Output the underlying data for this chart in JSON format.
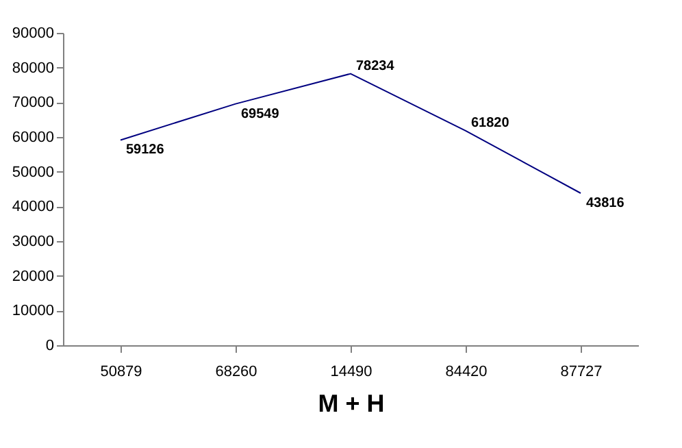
{
  "chart_data": {
    "type": "line",
    "xlabel": "M + H",
    "categories": [
      "50879",
      "68260",
      "14490",
      "84420",
      "87727"
    ],
    "series": [
      {
        "color": "#000080",
        "values": [
          59126,
          69549,
          78234,
          61820,
          43816
        ]
      }
    ],
    "ylim": [
      0,
      90000
    ],
    "yticks": [
      0,
      10000,
      20000,
      30000,
      40000,
      50000,
      60000,
      70000,
      80000,
      90000
    ],
    "data_labels": true,
    "grid": false,
    "marker": "none",
    "line_style": "solid"
  }
}
